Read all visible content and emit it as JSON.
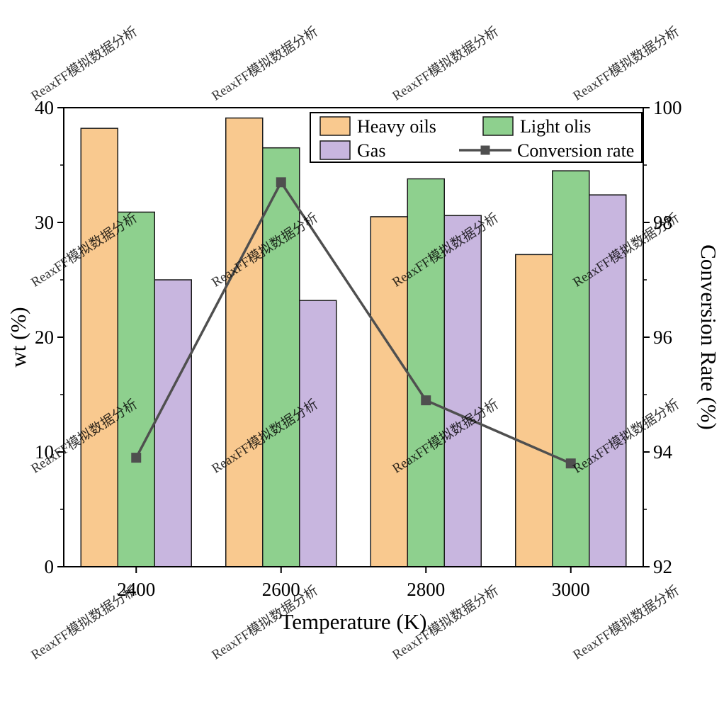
{
  "watermark": {
    "text": "ReaxFF模拟数据分析",
    "color": "#8a8a8a"
  },
  "chart_data": {
    "type": "bar+line",
    "categories": [
      "2400",
      "2600",
      "2800",
      "3000"
    ],
    "series": [
      {
        "name": "Heavy oils",
        "kind": "bar",
        "axis": "left",
        "color": "#F9C98F",
        "values": [
          38.2,
          39.1,
          30.5,
          27.2
        ]
      },
      {
        "name": "Light olis",
        "kind": "bar",
        "axis": "left",
        "color": "#8ED08E",
        "values": [
          30.9,
          36.5,
          33.8,
          34.5
        ]
      },
      {
        "name": "Gas",
        "kind": "bar",
        "axis": "left",
        "color": "#C8B6DF",
        "values": [
          25.0,
          23.2,
          30.6,
          32.4
        ]
      },
      {
        "name": "Conversion rate",
        "kind": "line",
        "axis": "right",
        "color": "#4F4F4F",
        "values": [
          93.9,
          98.7,
          94.9,
          93.8
        ]
      }
    ],
    "xlabel": "Temperature (K)",
    "ylabel_left": "wt (%)",
    "ylabel_right": "Conversion Rate (%)",
    "ylim_left": [
      0,
      40
    ],
    "yticks_left": [
      0,
      10,
      20,
      30,
      40
    ],
    "yticks_left_minor": [
      5,
      15,
      25,
      35
    ],
    "ylim_right": [
      92,
      100
    ],
    "yticks_right": [
      92,
      94,
      96,
      98,
      100
    ],
    "yticks_right_minor": [
      93,
      95,
      97,
      99
    ],
    "bar_edge_color": "#1a1a1a",
    "axis_color": "#000000",
    "grid": false,
    "legend": {
      "position": "top-right",
      "border": true,
      "entries": [
        "Heavy oils",
        "Light olis",
        "Gas",
        "Conversion rate"
      ]
    }
  }
}
